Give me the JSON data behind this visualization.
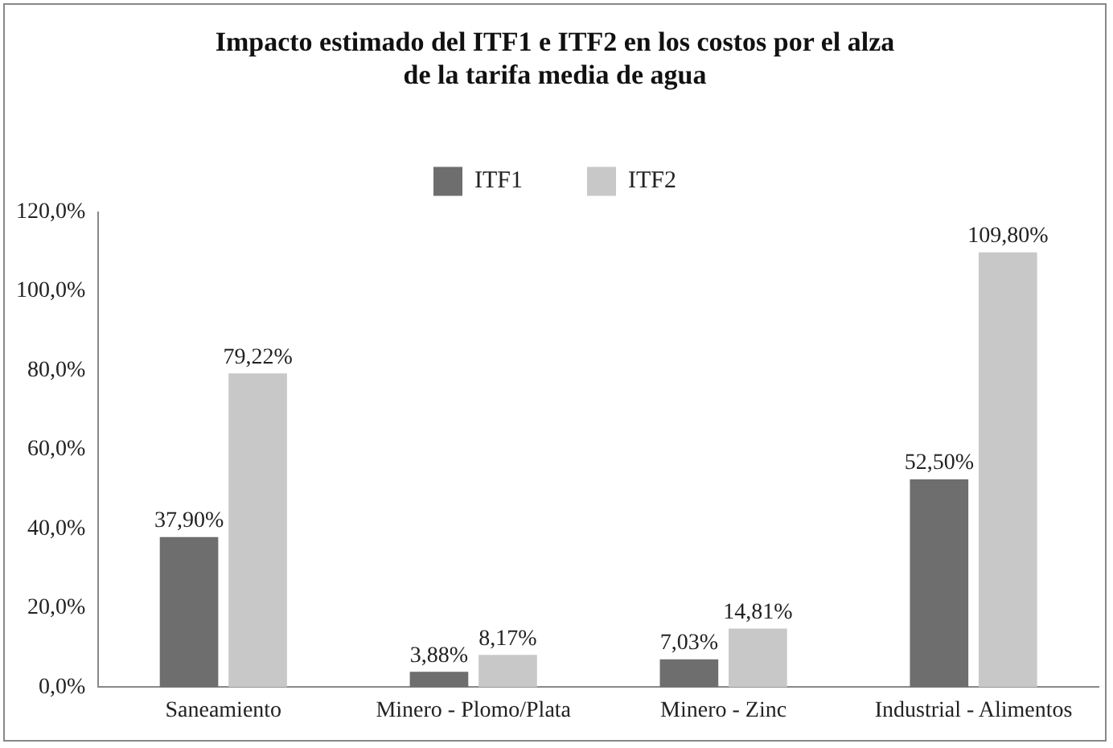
{
  "chart_data": {
    "type": "bar",
    "title": "Impacto estimado del ITF1 e ITF2 en los costos por el alza de la tarifa media de agua",
    "categories": [
      "Saneamiento",
      "Minero - Plomo/Plata",
      "Minero - Zinc",
      "Industrial - Alimentos"
    ],
    "series": [
      {
        "name": "ITF1",
        "color": "#6e6e6e",
        "values": [
          37.9,
          3.88,
          7.03,
          52.5
        ],
        "value_labels": [
          "37,90%",
          "3,88%",
          "7,03%",
          "52,50%"
        ]
      },
      {
        "name": "ITF2",
        "color": "#c8c8c8",
        "values": [
          79.22,
          8.17,
          14.81,
          109.8
        ],
        "value_labels": [
          "79,22%",
          "8,17%",
          "14,81%",
          "109,80%"
        ]
      }
    ],
    "ylim": [
      0,
      120
    ],
    "yticks": [
      {
        "value": 0,
        "label": "0,0%"
      },
      {
        "value": 20,
        "label": "20,0%"
      },
      {
        "value": 40,
        "label": "40,0%"
      },
      {
        "value": 60,
        "label": "60,0%"
      },
      {
        "value": 80,
        "label": "80,0%"
      },
      {
        "value": 100,
        "label": "100,0%"
      },
      {
        "value": 120,
        "label": "120,0%"
      }
    ],
    "grid": false,
    "legend": "top"
  }
}
